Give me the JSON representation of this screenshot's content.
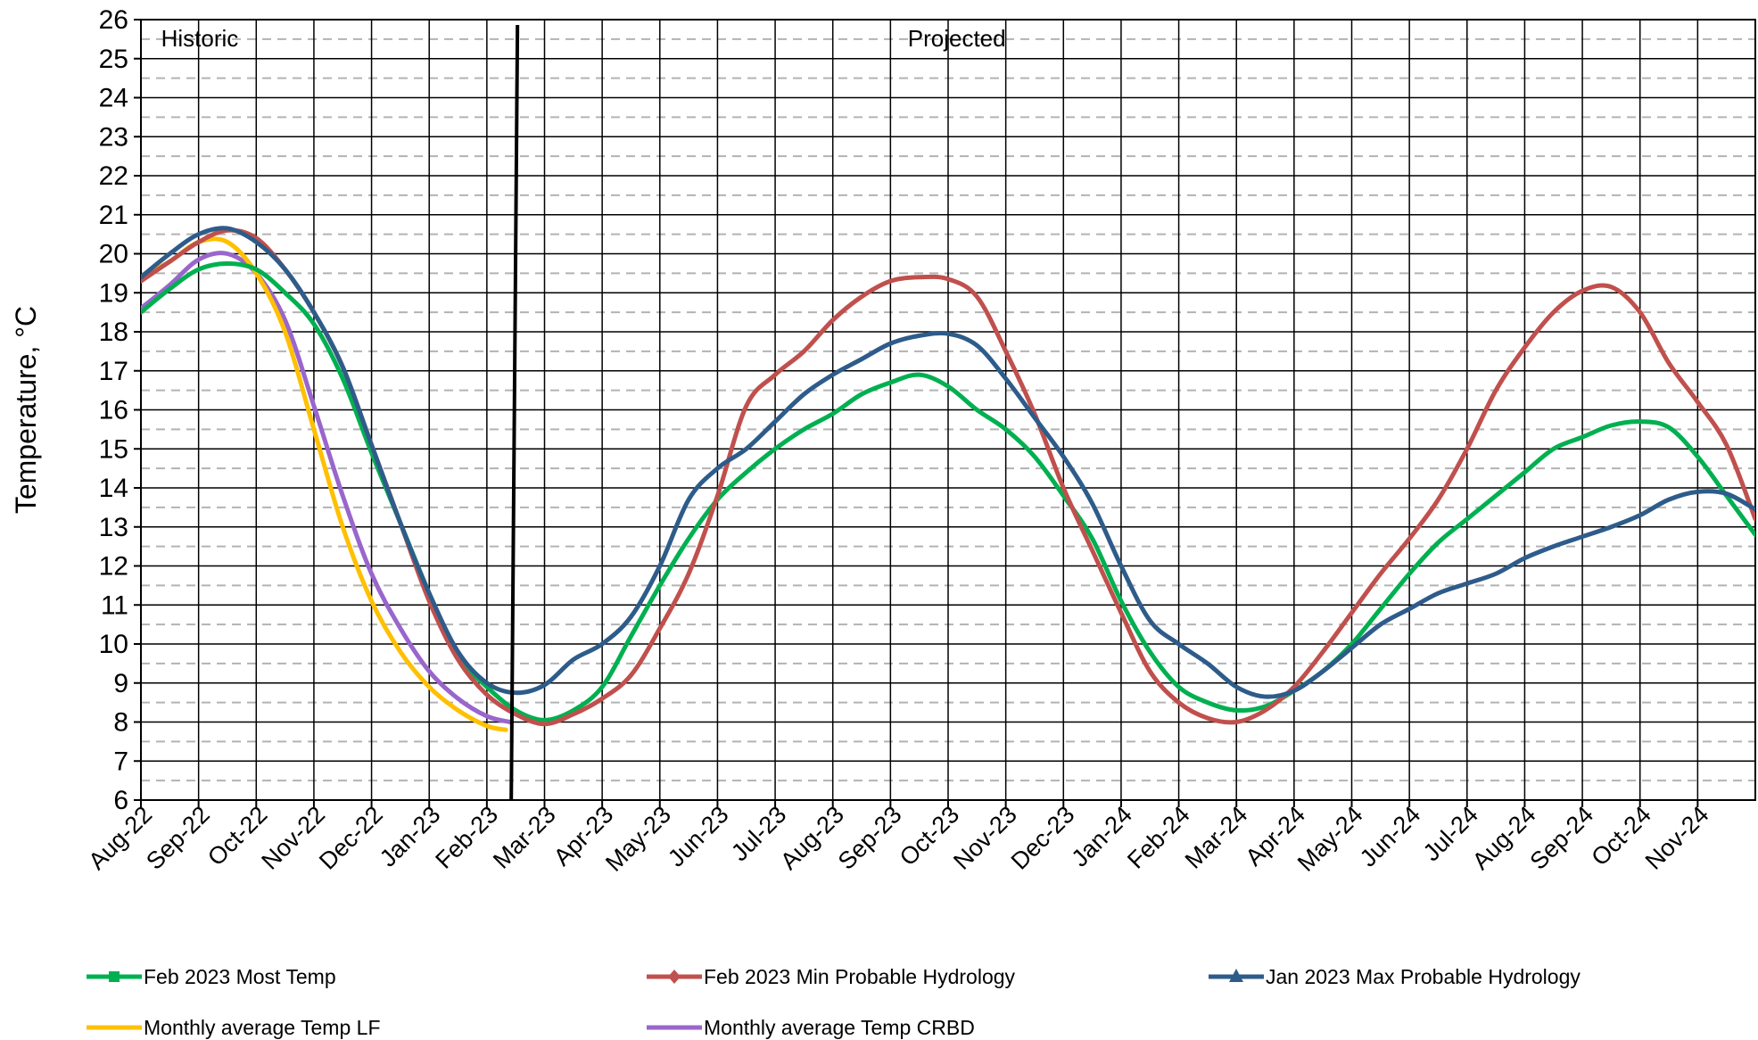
{
  "chart_data": {
    "type": "line",
    "ylabel": "Temperature, °C",
    "ylim": [
      6,
      26
    ],
    "yticks": [
      6,
      7,
      8,
      9,
      10,
      11,
      12,
      13,
      14,
      15,
      16,
      17,
      18,
      19,
      20,
      21,
      22,
      23,
      24,
      25,
      26
    ],
    "grid": "major solid black, minor dashed gray at half-units",
    "categories": [
      "Aug-22",
      "Sep-22",
      "Oct-22",
      "Nov-22",
      "Dec-22",
      "Jan-23",
      "Feb-23",
      "Mar-23",
      "Apr-23",
      "May-23",
      "Jun-23",
      "Jul-23",
      "Aug-23",
      "Sep-23",
      "Oct-23",
      "Nov-23",
      "Dec-23",
      "Jan-24",
      "Feb-24",
      "Mar-24",
      "Apr-24",
      "May-24",
      "Jun-24",
      "Jul-24",
      "Aug-24",
      "Sep-24",
      "Oct-24",
      "Nov-24"
    ],
    "annotations": [
      {
        "text": "Historic",
        "x": 0.35
      },
      {
        "text": "Projected",
        "x": 13.3
      }
    ],
    "divider_x": 6.5,
    "legend_position": "bottom",
    "series": [
      {
        "name": "Feb 2023 Most Temp",
        "color": "#00b050",
        "marker": "square",
        "x": [
          0,
          0.5,
          1,
          1.5,
          2,
          2.5,
          3,
          3.5,
          4,
          4.5,
          5,
          5.5,
          6,
          6.5,
          7,
          7.5,
          8,
          8.5,
          9,
          9.5,
          10,
          10.5,
          11,
          11.5,
          12,
          12.5,
          13,
          13.5,
          14,
          14.5,
          15,
          15.5,
          16,
          16.5,
          17,
          17.5,
          18,
          18.5,
          19,
          19.5,
          20,
          20.5,
          21,
          21.5,
          22,
          22.5,
          23,
          23.5,
          24,
          24.5,
          25,
          25.5,
          26,
          26.5,
          27,
          27.5,
          28
        ],
        "y": [
          18.5,
          19.1,
          19.6,
          19.75,
          19.6,
          19.0,
          18.2,
          16.8,
          14.9,
          13.1,
          11.3,
          9.7,
          8.9,
          8.3,
          8.05,
          8.3,
          8.9,
          10.2,
          11.5,
          12.7,
          13.7,
          14.4,
          15.0,
          15.5,
          15.9,
          16.4,
          16.7,
          16.9,
          16.6,
          16.0,
          15.5,
          14.8,
          13.8,
          12.7,
          11.1,
          9.8,
          8.9,
          8.5,
          8.3,
          8.4,
          8.8,
          9.3,
          10.0,
          10.9,
          11.8,
          12.6,
          13.2,
          13.8,
          14.4,
          15.0,
          15.3,
          15.6,
          15.7,
          15.55,
          14.8,
          13.8,
          12.8
        ]
      },
      {
        "name": "Feb 2023 Min Probable Hydrology",
        "color": "#c0504d",
        "marker": "diamond",
        "x": [
          0,
          0.5,
          1,
          1.5,
          2,
          2.5,
          3,
          3.5,
          4,
          4.5,
          5,
          5.5,
          6,
          6.5,
          7,
          7.5,
          8,
          8.5,
          9,
          9.5,
          10,
          10.5,
          11,
          11.5,
          12,
          12.5,
          13,
          13.5,
          14,
          14.5,
          15,
          15.5,
          16,
          16.5,
          17,
          17.5,
          18,
          18.5,
          19,
          19.5,
          20,
          20.5,
          21,
          21.5,
          22,
          22.5,
          23,
          23.5,
          24,
          24.5,
          25,
          25.5,
          26,
          26.5,
          27,
          27.5,
          28
        ],
        "y": [
          19.3,
          19.8,
          20.3,
          20.6,
          20.4,
          19.6,
          18.5,
          17.1,
          15.1,
          13.1,
          11.1,
          9.6,
          8.7,
          8.2,
          7.95,
          8.2,
          8.6,
          9.2,
          10.4,
          11.8,
          13.8,
          16.1,
          16.9,
          17.5,
          18.3,
          18.9,
          19.3,
          19.4,
          19.35,
          18.9,
          17.5,
          15.9,
          14.0,
          12.4,
          10.8,
          9.3,
          8.5,
          8.1,
          8.0,
          8.3,
          8.9,
          9.8,
          10.8,
          11.8,
          12.7,
          13.7,
          15.0,
          16.5,
          17.6,
          18.5,
          19.05,
          19.15,
          18.5,
          17.2,
          16.2,
          15.1,
          13.2
        ]
      },
      {
        "name": "Jan 2023 Max Probable Hydrology",
        "color": "#2e5c8a",
        "marker": "triangle",
        "x": [
          0,
          0.5,
          1,
          1.5,
          2,
          2.5,
          3,
          3.5,
          4,
          4.5,
          5,
          5.5,
          6,
          6.5,
          7,
          7.5,
          8,
          8.5,
          9,
          9.5,
          10,
          10.5,
          11,
          11.5,
          12,
          12.5,
          13,
          13.5,
          14,
          14.5,
          15,
          15.5,
          16,
          16.5,
          17,
          17.5,
          18,
          18.5,
          19,
          19.5,
          20,
          20.5,
          21,
          21.5,
          22,
          22.5,
          23,
          23.5,
          24,
          24.5,
          25,
          25.5,
          26,
          26.5,
          27,
          27.5,
          28
        ],
        "y": [
          19.4,
          20.0,
          20.5,
          20.65,
          20.3,
          19.6,
          18.5,
          17.1,
          15.1,
          13.1,
          11.3,
          9.8,
          9.0,
          8.75,
          8.95,
          9.6,
          10.0,
          10.7,
          12.0,
          13.7,
          14.5,
          15.0,
          15.7,
          16.4,
          16.9,
          17.3,
          17.7,
          17.9,
          17.95,
          17.65,
          16.8,
          15.8,
          14.8,
          13.6,
          12.0,
          10.6,
          10.0,
          9.5,
          8.9,
          8.65,
          8.8,
          9.3,
          9.9,
          10.5,
          10.9,
          11.3,
          11.55,
          11.8,
          12.2,
          12.5,
          12.75,
          13.0,
          13.3,
          13.7,
          13.9,
          13.85,
          13.45
        ]
      },
      {
        "name": "Monthly average Temp LF",
        "color": "#ffc000",
        "marker": "none",
        "x": [
          0,
          0.5,
          1,
          1.5,
          2,
          2.5,
          3,
          3.5,
          4,
          4.5,
          5,
          5.5,
          6,
          6.33
        ],
        "y": [
          19.4,
          19.8,
          20.3,
          20.3,
          19.5,
          18.0,
          15.5,
          13.0,
          11.1,
          9.8,
          8.9,
          8.3,
          7.9,
          7.8
        ]
      },
      {
        "name": "Monthly average Temp CRBD",
        "color": "#9966cc",
        "marker": "none",
        "x": [
          0,
          0.5,
          1,
          1.5,
          2,
          2.5,
          3,
          3.5,
          4,
          4.5,
          5,
          5.5,
          6,
          6.4
        ],
        "y": [
          18.6,
          19.2,
          19.85,
          20.0,
          19.5,
          18.3,
          16.1,
          13.8,
          11.8,
          10.4,
          9.3,
          8.6,
          8.15,
          8.0
        ]
      }
    ]
  }
}
